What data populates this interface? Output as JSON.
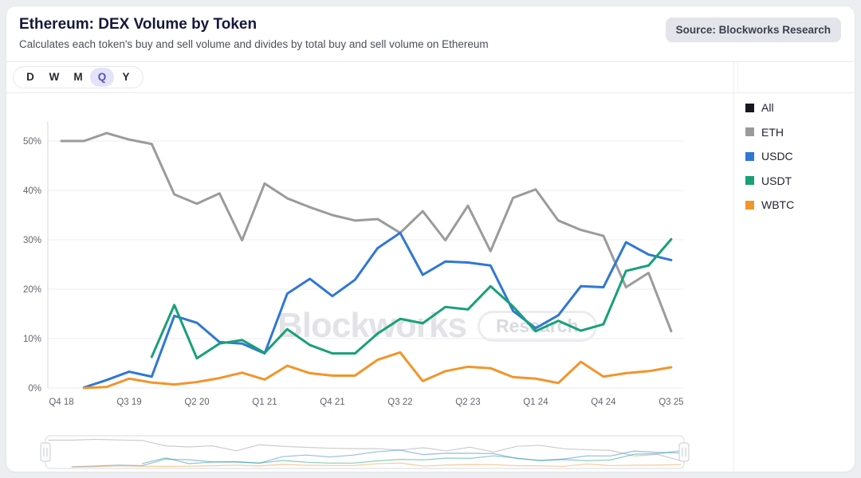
{
  "header": {
    "title": "Ethereum: DEX Volume by Token",
    "subtitle": "Calculates each token's buy and sell volume and divides by total buy and sell volume on Ethereum",
    "source_badge": "Source: Blockworks Research"
  },
  "toolbar": {
    "ranges": [
      "D",
      "W",
      "M",
      "Q",
      "Y"
    ],
    "active": "Q"
  },
  "watermark": {
    "brand": "Blockworks",
    "pill": "Research"
  },
  "chart_data": {
    "type": "line",
    "title": "Ethereum: DEX Volume by Token",
    "unit": "%",
    "grid": true,
    "legend_position": "right",
    "ylim": [
      0,
      55
    ],
    "yticks_percent": [
      0,
      10,
      20,
      30,
      40,
      50
    ],
    "x_tick_every": 3,
    "x_tick_labels": [
      "Q4 18",
      "Q3 19",
      "Q2 20",
      "Q1 21",
      "Q4 21",
      "Q3 22",
      "Q2 23",
      "Q1 24",
      "Q4 24",
      "Q3 25"
    ],
    "categories": [
      "Q4 18",
      "Q1 19",
      "Q2 19",
      "Q3 19",
      "Q4 19",
      "Q1 20",
      "Q2 20",
      "Q3 20",
      "Q4 20",
      "Q1 21",
      "Q2 21",
      "Q3 21",
      "Q4 21",
      "Q1 22",
      "Q2 22",
      "Q3 22",
      "Q4 22",
      "Q1 23",
      "Q2 23",
      "Q3 23",
      "Q4 23",
      "Q1 24",
      "Q2 24",
      "Q3 24",
      "Q4 24",
      "Q1 25",
      "Q2 25",
      "Q3 25"
    ],
    "series": [
      {
        "name": "All",
        "color": "#17181c",
        "line_visible": false,
        "values": null
      },
      {
        "name": "ETH",
        "color": "#9b9b9b",
        "line_visible": true,
        "values": [
          50.0,
          50.0,
          51.6,
          50.3,
          49.4,
          39.2,
          37.3,
          39.4,
          29.9,
          41.4,
          38.4,
          36.6,
          35.0,
          33.9,
          34.2,
          31.4,
          35.8,
          29.9,
          36.9,
          27.7,
          38.5,
          40.2,
          33.9,
          32.0,
          30.8,
          20.4,
          23.3,
          11.5
        ]
      },
      {
        "name": "USDC",
        "color": "#3077d3",
        "line_visible": true,
        "values": [
          null,
          0.1,
          1.6,
          3.3,
          2.3,
          14.6,
          13.2,
          9.3,
          9.0,
          7.0,
          19.1,
          22.1,
          18.6,
          21.9,
          28.3,
          31.4,
          22.9,
          25.6,
          25.4,
          24.8,
          15.6,
          12.1,
          14.7,
          20.6,
          20.4,
          29.5,
          27.0,
          25.9
        ]
      },
      {
        "name": "USDT",
        "color": "#18a077",
        "line_visible": true,
        "values": [
          null,
          null,
          null,
          null,
          6.3,
          16.8,
          6.0,
          9.0,
          9.7,
          7.1,
          11.9,
          8.7,
          7.0,
          7.0,
          11.0,
          14.0,
          13.1,
          16.4,
          15.9,
          20.6,
          16.5,
          11.5,
          13.6,
          11.6,
          12.9,
          23.7,
          24.8,
          30.1
        ]
      },
      {
        "name": "WBTC",
        "color": "#f2952a",
        "line_visible": true,
        "values": [
          null,
          0.0,
          0.2,
          1.9,
          1.1,
          0.7,
          1.2,
          2.0,
          3.1,
          1.7,
          4.5,
          3.0,
          2.5,
          2.5,
          5.7,
          7.2,
          1.4,
          3.4,
          4.3,
          4.0,
          2.2,
          1.9,
          1.0,
          5.3,
          2.3,
          3.0,
          3.4,
          4.2
        ]
      }
    ]
  },
  "navigator": {
    "present": true
  }
}
